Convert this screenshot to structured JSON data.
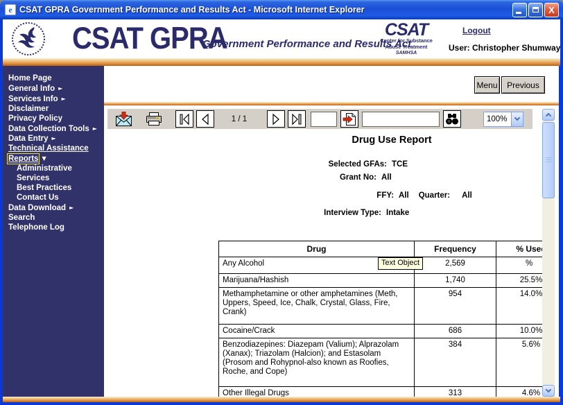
{
  "window": {
    "title": "CSAT GPRA Government Performance and Results Act - Microsoft Internet Explorer",
    "ie_icon_letter": "e"
  },
  "header": {
    "logo_main": "CSAT GPRA",
    "logo_tagline": "Government Performance and Results Act",
    "csat_logo": {
      "big": "CSAT",
      "line1": "Center for Substance",
      "line2": "Abuse Treatment",
      "line3": "SAMHSA"
    },
    "logout_label": "Logout",
    "user_label": "User: Christopher Shumway"
  },
  "sidebar": {
    "items": [
      {
        "label": "Home Page"
      },
      {
        "label": "General Info",
        "arrow": "right"
      },
      {
        "label": "Services Info",
        "arrow": "right"
      },
      {
        "label": "Disclaimer"
      },
      {
        "label": "Privacy Policy"
      },
      {
        "label": "Data Collection Tools",
        "arrow": "right"
      },
      {
        "label": "Data Entry",
        "arrow": "right"
      },
      {
        "label": "Technical Assistance",
        "underline": true
      },
      {
        "label": "Reports",
        "arrow": "down",
        "selected": true
      },
      {
        "label": "Administrative",
        "indent": true
      },
      {
        "label": "Services",
        "indent": true
      },
      {
        "label": "Best Practices",
        "indent": true
      },
      {
        "label": "Contact Us",
        "indent": true
      },
      {
        "label": "Data Download",
        "arrow": "right"
      },
      {
        "label": "Search"
      },
      {
        "label": "Telephone Log"
      }
    ]
  },
  "nav_buttons": {
    "menu": "Menu",
    "previous": "Previous"
  },
  "toolbar": {
    "page_indicator": "1 / 1",
    "goto_page_value": "",
    "search_value": "",
    "zoom_value": "100%"
  },
  "report": {
    "title": "Drug Use Report",
    "params": [
      {
        "pairs": [
          {
            "label": "Selected GFAs:",
            "value": "TCE"
          }
        ]
      },
      {
        "pairs": [
          {
            "label": "Grant No:",
            "value": "All"
          }
        ]
      },
      {
        "pairs": [
          {
            "label": "FFY:",
            "value": "All"
          },
          {
            "label": "Quarter:",
            "value": "All"
          }
        ]
      },
      {
        "pairs": [
          {
            "label": "Interview Type:",
            "value": "Intake"
          }
        ]
      }
    ],
    "table": {
      "headers": [
        "Drug",
        "Frequency",
        "% Used"
      ],
      "rows": [
        {
          "drug": "Any Alcohol",
          "frequency": "2,569",
          "pct": "%",
          "tooltip": "Text Object"
        },
        {
          "drug": "Marijuana/Hashish",
          "frequency": "1,740",
          "pct": "25.5%"
        },
        {
          "drug": "Methamphetamine or other amphetamines (Meth, Uppers, Speed, Ice, Chalk, Crystal, Glass, Fire, Crank)",
          "frequency": "954",
          "pct": "14.0%"
        },
        {
          "drug": "Cocaine/Crack",
          "frequency": "686",
          "pct": "10.0%"
        },
        {
          "drug": "Benzodiazepines: Diazepam (Valium); Alprazolam (Xanax); Triazolam (Halcion); and Estasolam (Prosom and Rohypnol-also known as Roofies, Roche, and Cope)",
          "frequency": "384",
          "pct": "5.6%"
        },
        {
          "drug": "Other Illegal Drugs",
          "frequency": "313",
          "pct": "4.6%"
        }
      ]
    }
  },
  "colors": {
    "navy": "#32326B",
    "titlebar_blue": "#1A50D8",
    "window_border_blue": "#0B39D8",
    "orange_accent": "#E39A4E",
    "toolbar_gray": "#D4D0C8",
    "tooltip_yellow": "#FFFFE1",
    "reports_highlight_yellow": "#EFE14A"
  }
}
